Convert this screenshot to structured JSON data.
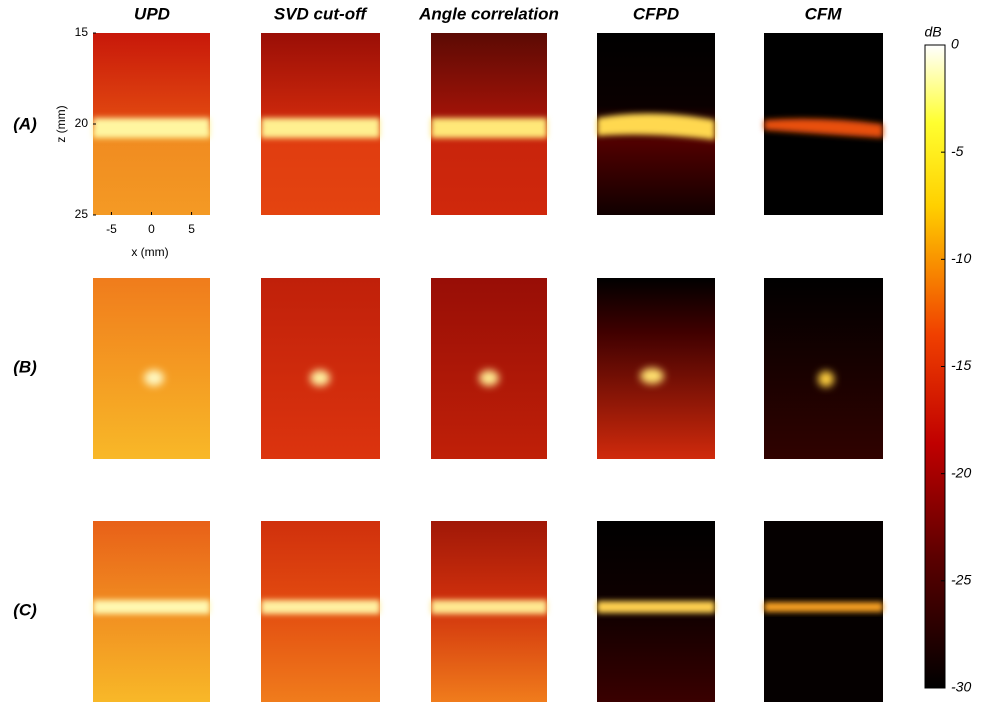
{
  "columns": [
    "UPD",
    "SVD cut-off",
    "Angle correlation",
    "CFPD",
    "CFM"
  ],
  "rows": [
    "(A)",
    "(B)",
    "(C)"
  ],
  "axes": {
    "xlabel": "x (mm)",
    "ylabel": "z (mm)",
    "xlim": [
      -7.3,
      7.3
    ],
    "xticks": [
      -5,
      0,
      5
    ],
    "ylim": [
      15,
      25
    ],
    "yticks": [
      15,
      20,
      25
    ]
  },
  "colorbar": {
    "label": "dB",
    "lim": [
      -30,
      0
    ],
    "ticks": [
      0,
      -5,
      -10,
      -15,
      -20,
      -25,
      -30
    ]
  }
}
